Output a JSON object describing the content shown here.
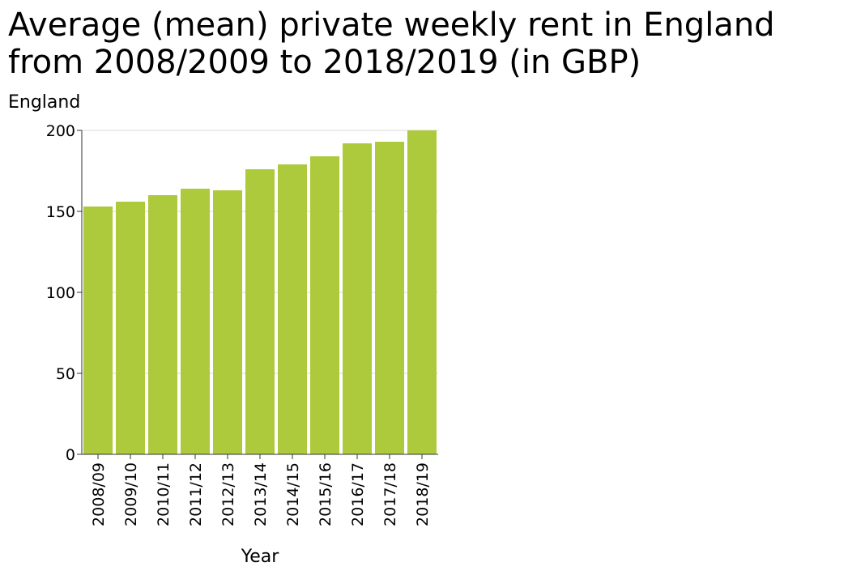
{
  "chart_data": {
    "type": "bar",
    "title": "Average (mean) private weekly rent in England from 2008/2009 to 2018/2019 (in GBP)",
    "xlabel": "Year",
    "ylabel": "England",
    "ylim": [
      0,
      200
    ],
    "yticks": [
      0,
      50,
      100,
      150,
      200
    ],
    "grid": true,
    "bar_color": "#adc93c",
    "categories": [
      "2008/09",
      "2009/10",
      "2010/11",
      "2011/12",
      "2012/13",
      "2013/14",
      "2014/15",
      "2015/16",
      "2016/17",
      "2017/18",
      "2018/19"
    ],
    "values": [
      153,
      156,
      160,
      164,
      163,
      176,
      179,
      184,
      192,
      193,
      200
    ]
  }
}
